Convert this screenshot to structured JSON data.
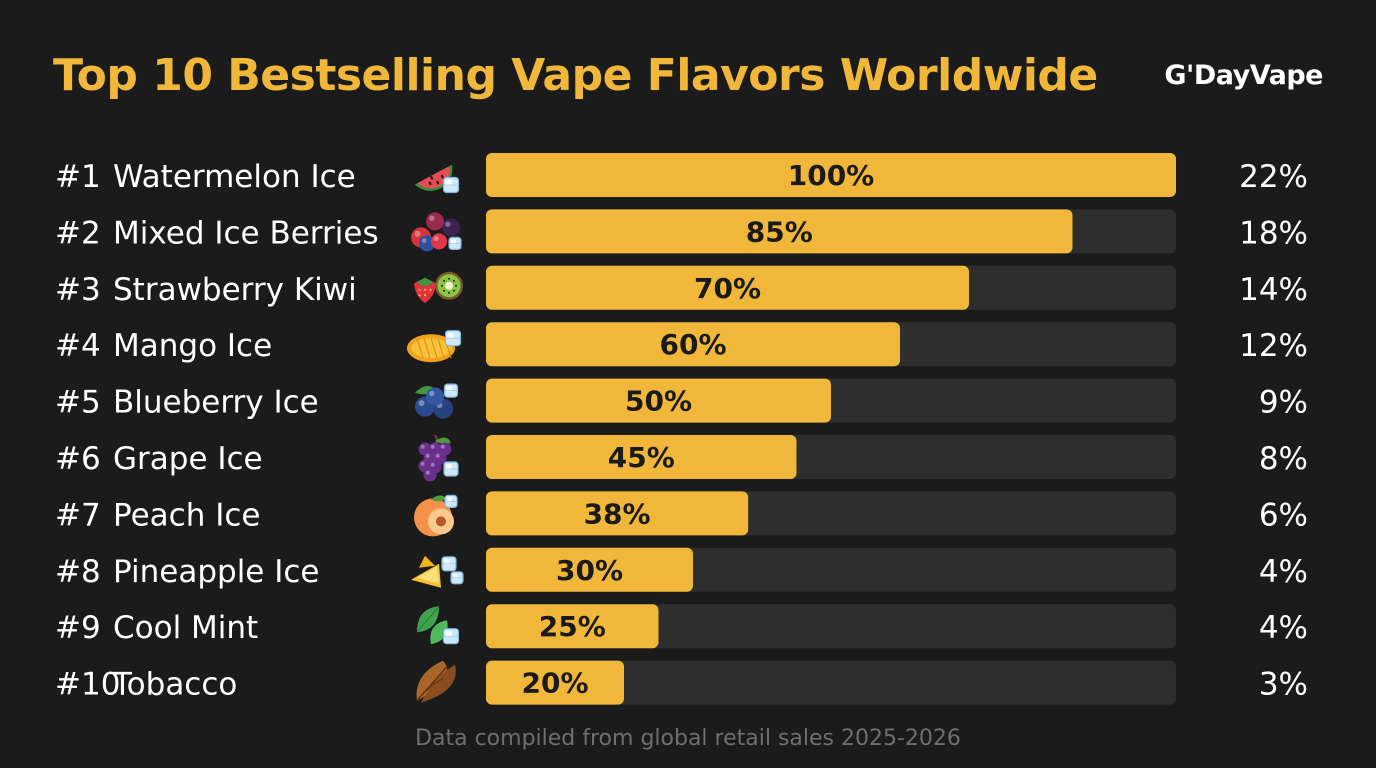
{
  "header": {
    "title": "Top 10 Bestselling Vape Flavors Worldwide",
    "brand": "G'DayVape"
  },
  "footer": {
    "note": "Data compiled from global retail sales 2025-2026"
  },
  "colors": {
    "background": "#1b1b1b",
    "accent": "#f0b73b",
    "track": "#2e2e2e",
    "text": "#ffffff",
    "bar_label": "#1a1a1a",
    "note": "#6e6e6e"
  },
  "chart_data": {
    "type": "bar",
    "orientation": "horizontal",
    "title": "Top 10 Bestselling Vape Flavors Worldwide",
    "xlim": [
      0,
      100
    ],
    "grid": false,
    "legend": "none",
    "items": [
      {
        "rank": "#1",
        "name": "Watermelon Ice",
        "icon": "watermelon-ice-icon",
        "relative": 100,
        "relative_label": "100%",
        "share": 22,
        "share_label": "22%"
      },
      {
        "rank": "#2",
        "name": "Mixed Ice Berries",
        "icon": "mixed-berries-icon",
        "relative": 85,
        "relative_label": "85%",
        "share": 18,
        "share_label": "18%"
      },
      {
        "rank": "#3",
        "name": "Strawberry Kiwi",
        "icon": "strawberry-kiwi-icon",
        "relative": 70,
        "relative_label": "70%",
        "share": 14,
        "share_label": "14%"
      },
      {
        "rank": "#4",
        "name": "Mango Ice",
        "icon": "mango-ice-icon",
        "relative": 60,
        "relative_label": "60%",
        "share": 12,
        "share_label": "12%"
      },
      {
        "rank": "#5",
        "name": "Blueberry Ice",
        "icon": "blueberry-ice-icon",
        "relative": 50,
        "relative_label": "50%",
        "share": 9,
        "share_label": "9%"
      },
      {
        "rank": "#6",
        "name": "Grape Ice",
        "icon": "grape-ice-icon",
        "relative": 45,
        "relative_label": "45%",
        "share": 8,
        "share_label": "8%"
      },
      {
        "rank": "#7",
        "name": "Peach Ice",
        "icon": "peach-ice-icon",
        "relative": 38,
        "relative_label": "38%",
        "share": 6,
        "share_label": "6%"
      },
      {
        "rank": "#8",
        "name": "Pineapple Ice",
        "icon": "pineapple-ice-icon",
        "relative": 30,
        "relative_label": "30%",
        "share": 4,
        "share_label": "4%"
      },
      {
        "rank": "#9",
        "name": "Cool Mint",
        "icon": "mint-ice-icon",
        "relative": 25,
        "relative_label": "25%",
        "share": 4,
        "share_label": "4%"
      },
      {
        "rank": "#10",
        "name": "Tobacco",
        "icon": "tobacco-leaf-icon",
        "relative": 20,
        "relative_label": "20%",
        "share": 3,
        "share_label": "3%"
      }
    ]
  }
}
